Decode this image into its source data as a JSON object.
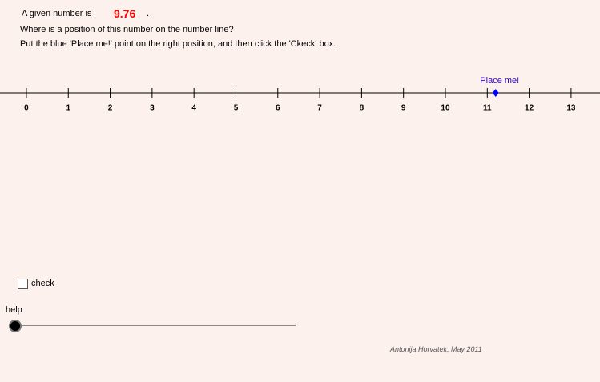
{
  "header": {
    "given_prefix": "A given number is",
    "given_number": "9.76",
    "given_suffix": ".",
    "question": "Where is a position of this number on the number line?",
    "instruction": "Put the blue 'Place me!' point on the right position, and then click the 'Ckeck' box."
  },
  "number_line": {
    "xlim": [
      -0.63,
      13.69
    ],
    "ticks": [
      0,
      1,
      2,
      3,
      4,
      5,
      6,
      7,
      8,
      9,
      10,
      11,
      12,
      13
    ],
    "point": {
      "label": "Place me!",
      "value": 11.2,
      "color": "#0000ff"
    }
  },
  "controls": {
    "check_label": "check",
    "help_label": "help"
  },
  "footer": {
    "credit": "Antonija Horvatek, May 2011"
  }
}
